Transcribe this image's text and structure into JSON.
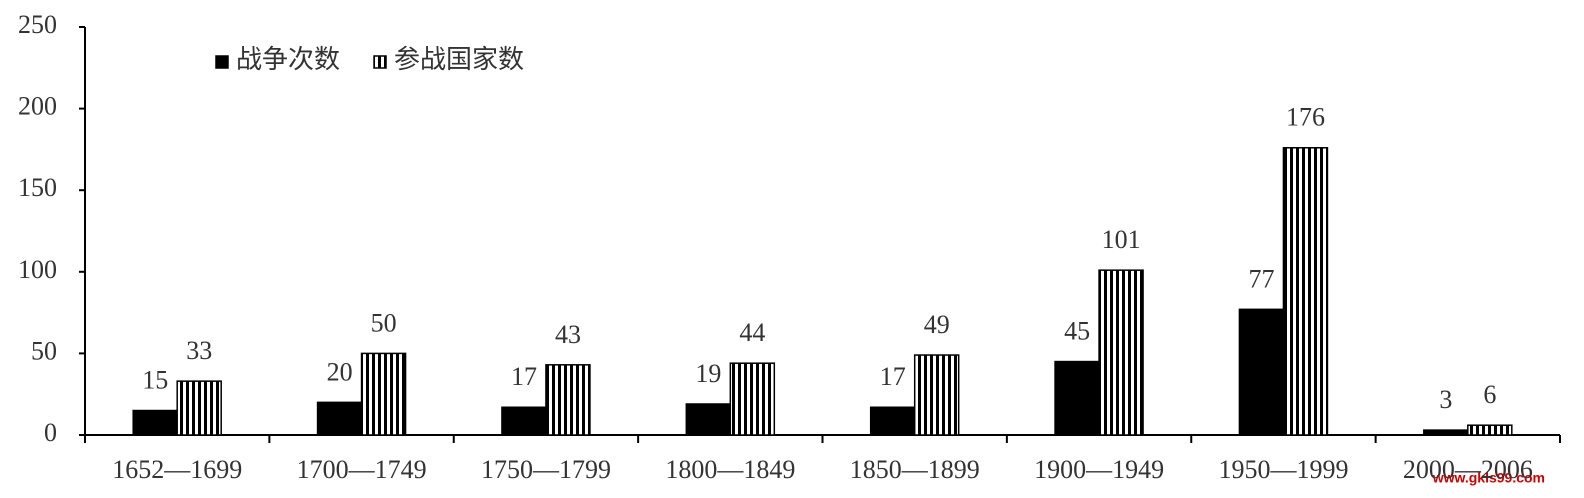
{
  "chart_data": {
    "type": "bar",
    "categories": [
      "1652—1699",
      "1700—1749",
      "1750—1799",
      "1800—1849",
      "1850—1899",
      "1900—1949",
      "1950—1999",
      "2000—2006"
    ],
    "series": [
      {
        "name": "战争次数",
        "color": "#000000",
        "pattern": "solid",
        "values": [
          15,
          20,
          17,
          19,
          17,
          45,
          77,
          3
        ]
      },
      {
        "name": "参战国家数",
        "color": "#000000",
        "pattern": "vertical-stripes",
        "values": [
          33,
          50,
          43,
          44,
          49,
          101,
          176,
          6
        ]
      }
    ],
    "ylim": [
      0,
      250
    ],
    "yticks": [
      0,
      50,
      100,
      150,
      200,
      250
    ],
    "legend": "top-left",
    "watermark": "www.gkls99.com"
  }
}
